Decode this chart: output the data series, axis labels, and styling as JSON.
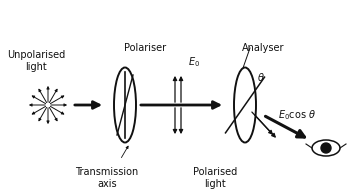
{
  "bg_color": "#ffffff",
  "text_color": "#111111",
  "arrow_color": "#111111",
  "ellipse_edge": "#111111",
  "labels": {
    "unpolarised": "Unpolarised\nlight",
    "polariser": "Polariser",
    "transmission": "Transmission\naxis",
    "polarised": "Polarised\nlight",
    "E0": "$E_0$",
    "analyser": "Analyser",
    "theta": "$\\theta$",
    "E0costheta": "$E_0$cos $\\theta$"
  },
  "figsize": [
    3.5,
    1.94
  ],
  "dpi": 100
}
